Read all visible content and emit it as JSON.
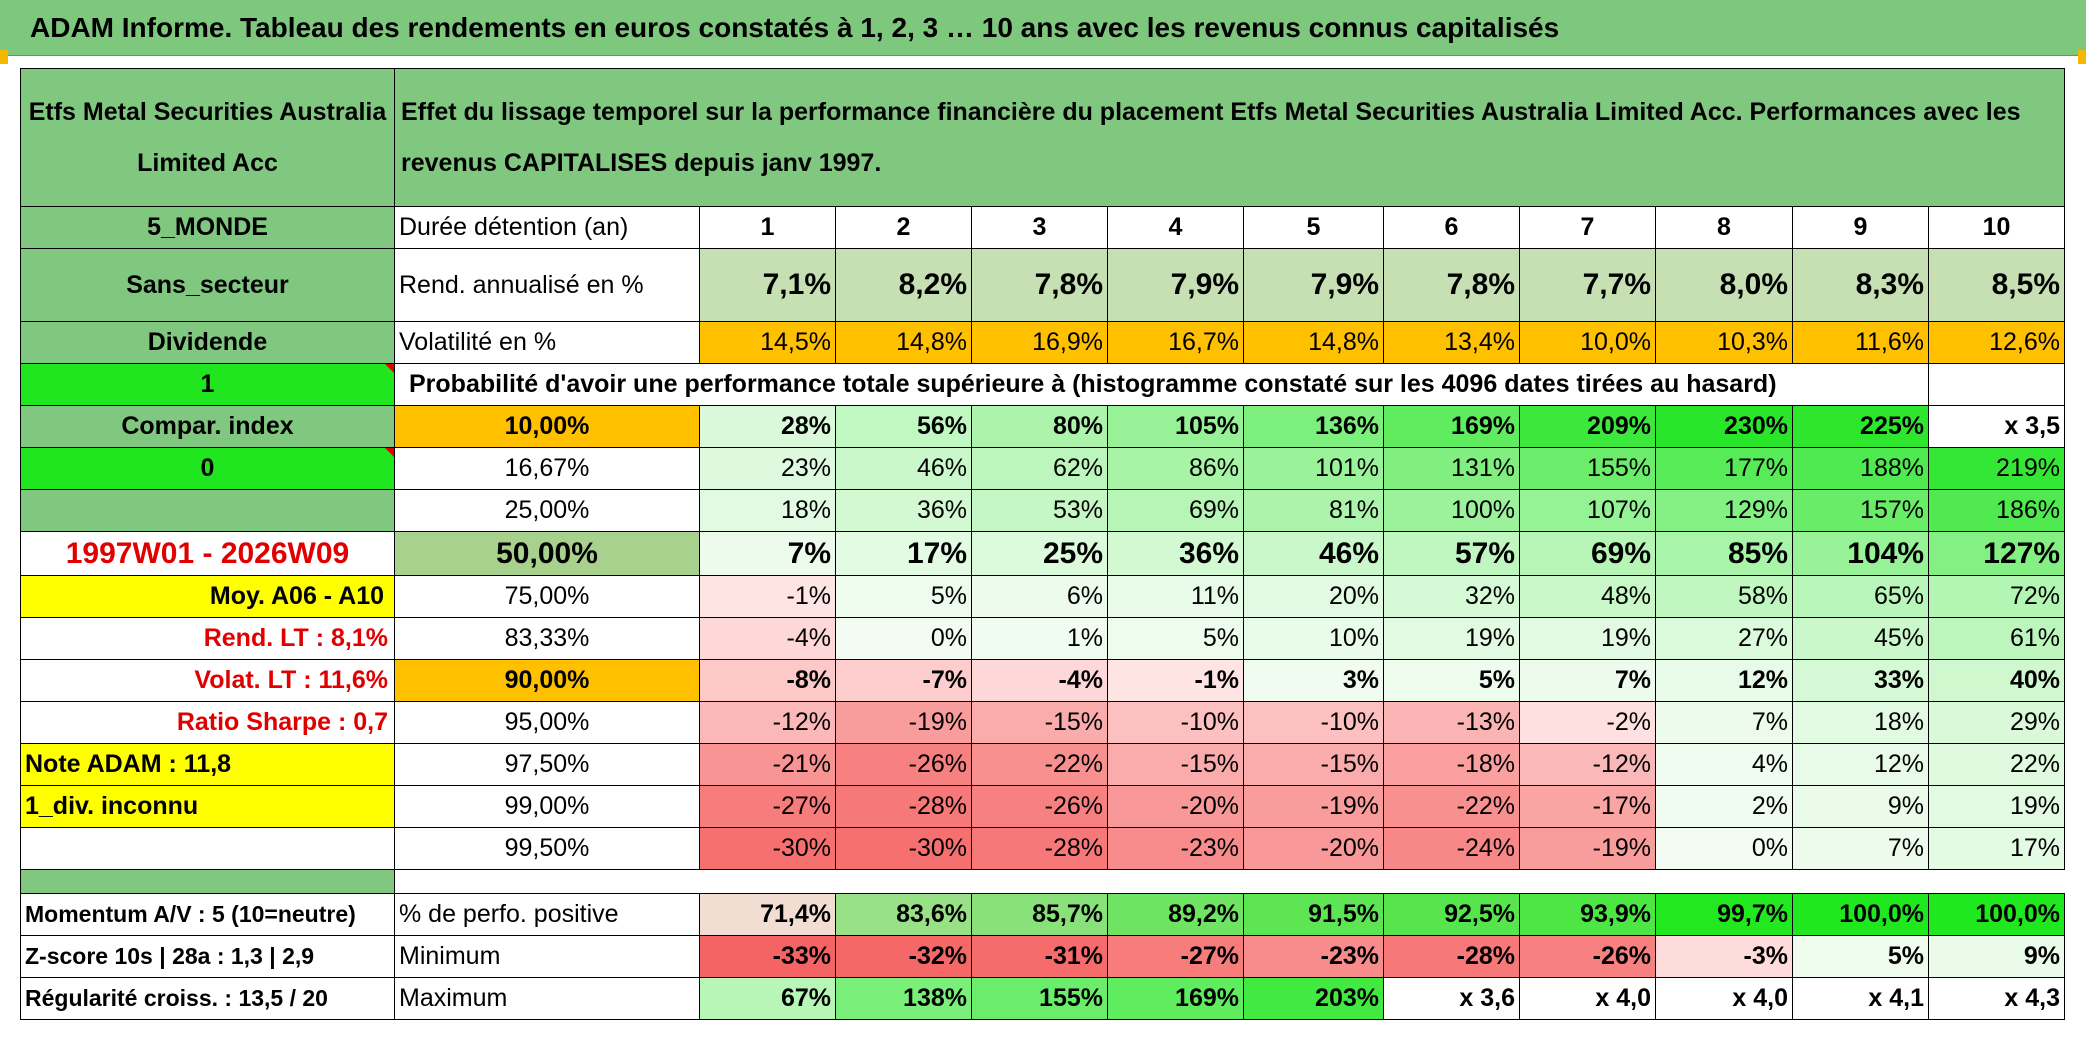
{
  "banner_title": "ADAM Informe. Tableau des rendements en euros constatés à 1, 2, 3 … 10 ans avec les revenus connus capitalisés",
  "header": {
    "fund_name": "Etfs Metal Securities Australia Limited Acc",
    "description": "Effet du lissage temporel sur la performance financière du placement Etfs Metal Securities Australia Limited Acc. Performances avec les revenus CAPITALISES depuis janv 1997."
  },
  "left_labels": {
    "zone": "5_MONDE",
    "sector": "Sans_secteur",
    "dividend": "Dividende",
    "one": "1",
    "compar_index": "Compar. index",
    "zero": "0",
    "period": "1997W01 - 2026W09",
    "moy": "Moy. A06 - A10",
    "rend_lt": "Rend. LT :   8,1%",
    "volat_lt": "Volat. LT :   11,6%",
    "sharpe": "Ratio Sharpe :   0,7",
    "note": "Note ADAM : 11,8",
    "div_inconnu": "1_div. inconnu"
  },
  "row_labels": {
    "duree": "Durée détention (an)",
    "rend": "Rend. annualisé en %",
    "volat": "Volatilité en %",
    "probability": "Probabilité d'avoir une performance totale supérieure à (histogramme constaté sur les 4096 dates tirées au hasard)"
  },
  "years": [
    "1",
    "2",
    "3",
    "4",
    "5",
    "6",
    "7",
    "8",
    "9",
    "10"
  ],
  "rend_values": [
    "7,1%",
    "8,2%",
    "7,8%",
    "7,9%",
    "7,9%",
    "7,8%",
    "7,7%",
    "8,0%",
    "8,3%",
    "8,5%"
  ],
  "volat_values": [
    "14,5%",
    "14,8%",
    "16,9%",
    "16,7%",
    "14,8%",
    "13,4%",
    "10,0%",
    "10,3%",
    "11,6%",
    "12,6%"
  ],
  "percentile_rows": [
    {
      "label": "10,00%",
      "values": [
        "28%",
        "56%",
        "80%",
        "105%",
        "136%",
        "169%",
        "209%",
        "230%",
        "225%",
        "x 3,5"
      ]
    },
    {
      "label": "16,67%",
      "values": [
        "23%",
        "46%",
        "62%",
        "86%",
        "101%",
        "131%",
        "155%",
        "177%",
        "188%",
        "219%"
      ]
    },
    {
      "label": "25,00%",
      "values": [
        "18%",
        "36%",
        "53%",
        "69%",
        "81%",
        "100%",
        "107%",
        "129%",
        "157%",
        "186%"
      ]
    },
    {
      "label": "50,00%",
      "values": [
        "7%",
        "17%",
        "25%",
        "36%",
        "46%",
        "57%",
        "69%",
        "85%",
        "104%",
        "127%"
      ]
    },
    {
      "label": "75,00%",
      "values": [
        "-1%",
        "5%",
        "6%",
        "11%",
        "20%",
        "32%",
        "48%",
        "58%",
        "65%",
        "72%"
      ]
    },
    {
      "label": "83,33%",
      "values": [
        "-4%",
        "0%",
        "1%",
        "5%",
        "10%",
        "19%",
        "19%",
        "27%",
        "45%",
        "61%"
      ]
    },
    {
      "label": "90,00%",
      "values": [
        "-8%",
        "-7%",
        "-4%",
        "-1%",
        "3%",
        "5%",
        "7%",
        "12%",
        "33%",
        "40%"
      ]
    },
    {
      "label": "95,00%",
      "values": [
        "-12%",
        "-19%",
        "-15%",
        "-10%",
        "-10%",
        "-13%",
        "-2%",
        "7%",
        "18%",
        "29%"
      ]
    },
    {
      "label": "97,50%",
      "values": [
        "-21%",
        "-26%",
        "-22%",
        "-15%",
        "-15%",
        "-18%",
        "-12%",
        "4%",
        "12%",
        "22%"
      ]
    },
    {
      "label": "99,00%",
      "values": [
        "-27%",
        "-28%",
        "-26%",
        "-20%",
        "-19%",
        "-22%",
        "-17%",
        "2%",
        "9%",
        "19%"
      ]
    },
    {
      "label": "99,50%",
      "values": [
        "-30%",
        "-30%",
        "-28%",
        "-23%",
        "-20%",
        "-24%",
        "-19%",
        "0%",
        "7%",
        "17%"
      ]
    }
  ],
  "footer": [
    {
      "left": "Momentum A/V : 5 (10=neutre)",
      "label": "% de perfo. positive",
      "values": [
        "71,4%",
        "83,6%",
        "85,7%",
        "89,2%",
        "91,5%",
        "92,5%",
        "93,9%",
        "99,7%",
        "100,0%",
        "100,0%"
      ]
    },
    {
      "left": "Z-score 10s | 28a : 1,3 | 2,9",
      "label": "Minimum",
      "values": [
        "-33%",
        "-32%",
        "-31%",
        "-27%",
        "-23%",
        "-28%",
        "-26%",
        "-3%",
        "5%",
        "9%"
      ]
    },
    {
      "left": "Régularité croiss. : 13,5 / 20",
      "label": "Maximum",
      "values": [
        "67%",
        "138%",
        "155%",
        "169%",
        "203%",
        "x 3,6",
        "x 4,0",
        "x 4,0",
        "x 4,1",
        "x 4,3"
      ]
    }
  ],
  "colors": {
    "header_green": "#80c880",
    "bright_green": "#1fe61f",
    "orange": "#ffc000",
    "yellow": "#ffff00",
    "red_text": "#e00000"
  }
}
